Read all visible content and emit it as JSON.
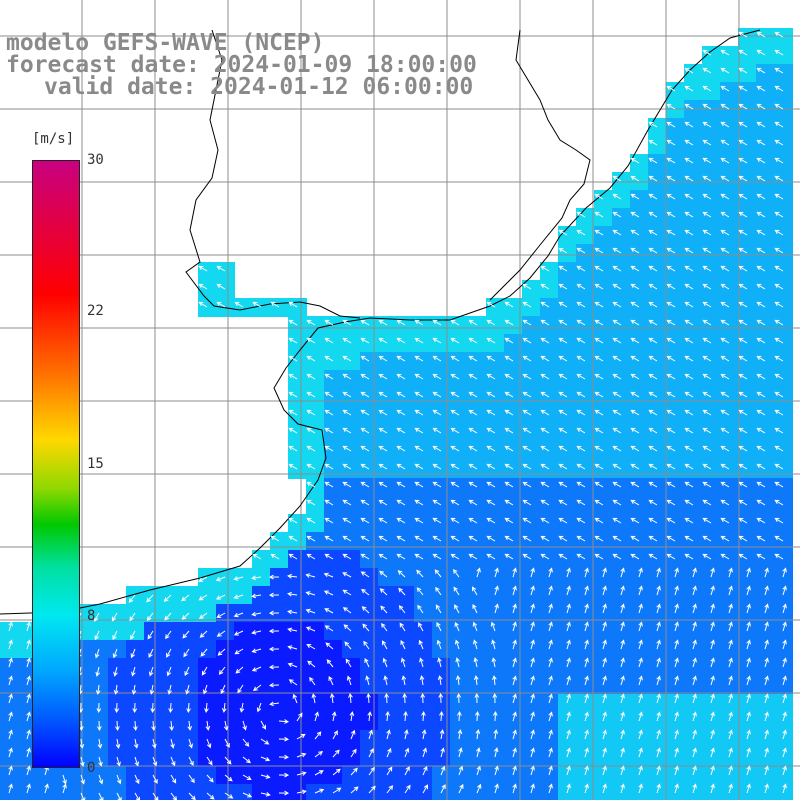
{
  "title": {
    "model": "modelo GEFS-WAVE (NCEP)",
    "forecast": "forecast date: 2024-01-09 18:00:00",
    "valid": "valid date: 2024-01-12 06:00:00"
  },
  "colorbar": {
    "unit": "[m/s]",
    "ticks": [
      "30",
      "22",
      "15",
      "8",
      "0"
    ],
    "colors": [
      "#c80080",
      "#ff0000",
      "#ff7000",
      "#ffd800",
      "#00c800",
      "#00e8f0",
      "#00a8ff",
      "#0000ff"
    ]
  },
  "map": {
    "land_color": "#ffffff",
    "grid_color": "#8c8c8c",
    "coast_color": "#000000",
    "arrow_color": "#ffffff"
  }
}
